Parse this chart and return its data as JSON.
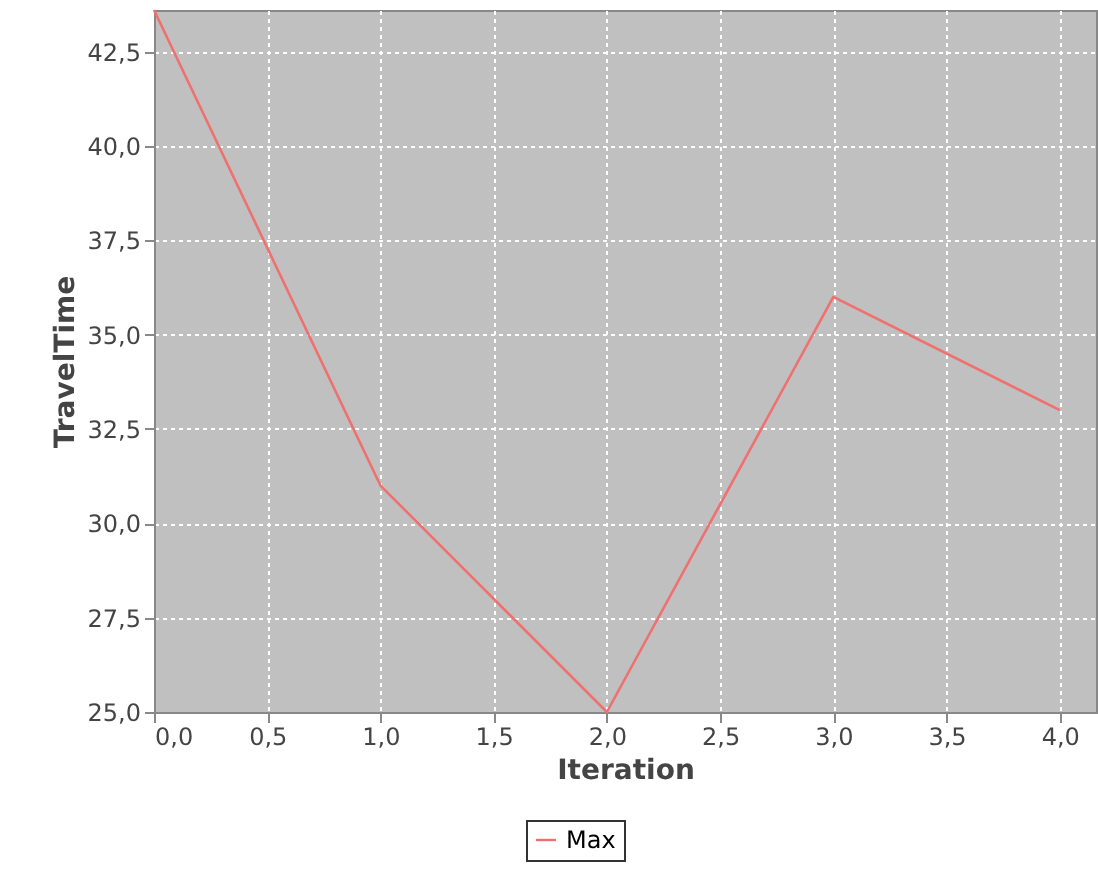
{
  "chart_data": {
    "type": "line",
    "xlabel": "Iteration",
    "ylabel": "TravelTime",
    "x": [
      0,
      1,
      2,
      3,
      4
    ],
    "series": [
      {
        "name": "Max",
        "color": "#f07070",
        "values": [
          43.6,
          31,
          25,
          36,
          33
        ]
      }
    ],
    "xlim": [
      0,
      4.16
    ],
    "ylim": [
      25,
      43.6
    ],
    "xticks": [
      {
        "value": 0,
        "label": "0,0"
      },
      {
        "value": 0.5,
        "label": "0,5"
      },
      {
        "value": 1,
        "label": "1,0"
      },
      {
        "value": 1.5,
        "label": "1,5"
      },
      {
        "value": 2,
        "label": "2,0"
      },
      {
        "value": 2.5,
        "label": "2,5"
      },
      {
        "value": 3,
        "label": "3,0"
      },
      {
        "value": 3.5,
        "label": "3,5"
      },
      {
        "value": 4,
        "label": "4,0"
      }
    ],
    "yticks": [
      {
        "value": 25,
        "label": "25,0"
      },
      {
        "value": 27.5,
        "label": "27,5"
      },
      {
        "value": 30,
        "label": "30,0"
      },
      {
        "value": 32.5,
        "label": "32,5"
      },
      {
        "value": 35,
        "label": "35,0"
      },
      {
        "value": 37.5,
        "label": "37,5"
      },
      {
        "value": 40,
        "label": "40,0"
      },
      {
        "value": 42.5,
        "label": "42,5"
      }
    ],
    "grid": true,
    "legend": "bottom",
    "marker": "none",
    "line_style": "solid"
  }
}
